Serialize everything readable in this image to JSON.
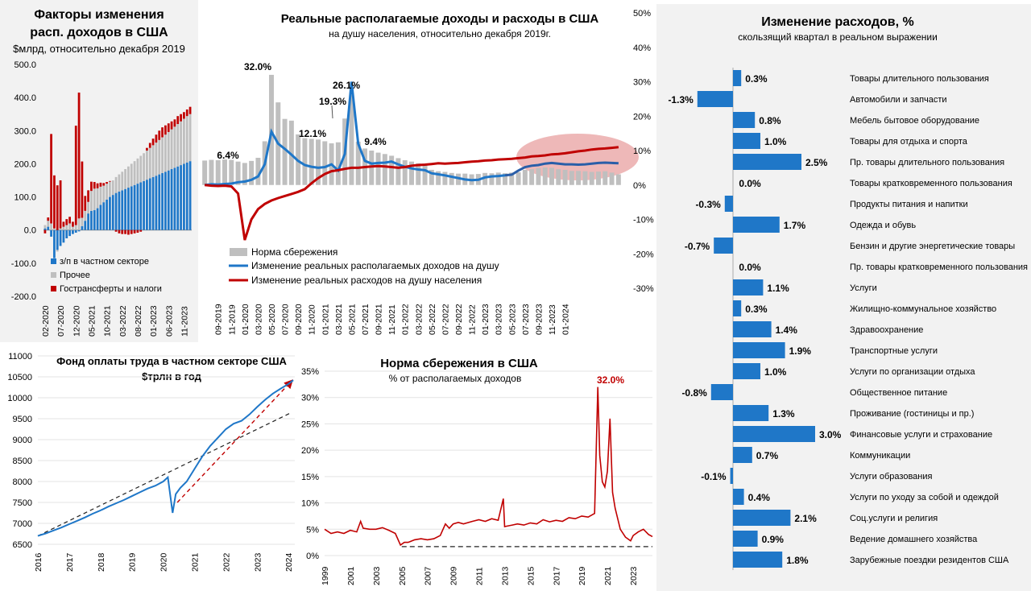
{
  "colors": {
    "blue": "#1f77c8",
    "red": "#c00000",
    "gray": "#bfbfbf",
    "dark_blue": "#2a5ea8",
    "highlight": "#e8a0a0"
  },
  "chart_data": [
    {
      "id": "factors",
      "type": "bar",
      "title_line1": "Факторы изменения",
      "title_line2": "расп. доходов в США",
      "subtitle": "$млрд, относительно декабря 2019",
      "y_ticks": [
        "500.0",
        "400.0",
        "300.0",
        "200.0",
        "100.0",
        "0.0",
        "-100.0",
        "-200.0"
      ],
      "ylim": [
        -200,
        500
      ],
      "x_labels": [
        "02-2020",
        "07-2020",
        "12-2020",
        "05-2021",
        "10-2021",
        "03-2022",
        "08-2022",
        "01-2023",
        "06-2023",
        "11-2023"
      ],
      "legend": [
        "з/п в частном секторе",
        "Прочее",
        "Гострансферты и налоги"
      ],
      "series": [
        {
          "name": "з/п в частном секторе",
          "values": [
            5,
            10,
            -20,
            -85,
            -60,
            -48,
            -38,
            -25,
            -18,
            -12,
            -8,
            -4,
            12,
            28,
            50,
            58,
            60,
            66,
            76,
            84,
            92,
            100,
            106,
            112,
            116,
            120,
            124,
            128,
            132,
            136,
            140,
            144,
            148,
            152,
            156,
            160,
            164,
            168,
            172,
            176,
            180,
            184,
            188,
            192,
            196,
            200,
            204,
            208
          ]
        },
        {
          "name": "Прочее",
          "values": [
            10,
            18,
            20,
            5,
            -5,
            5,
            10,
            15,
            20,
            10,
            15,
            35,
            25,
            30,
            35,
            60,
            65,
            60,
            55,
            50,
            48,
            46,
            44,
            48,
            52,
            56,
            60,
            64,
            68,
            72,
            76,
            80,
            84,
            88,
            92,
            96,
            100,
            104,
            108,
            112,
            116,
            120,
            124,
            128,
            132,
            136,
            140,
            142
          ]
        },
        {
          "name": "Гострансферты и налоги",
          "values": [
            -10,
            10,
            270,
            160,
            135,
            145,
            15,
            18,
            20,
            15,
            300,
            380,
            170,
            45,
            35,
            28,
            20,
            15,
            12,
            8,
            5,
            2,
            0,
            -5,
            -10,
            -12,
            -12,
            -14,
            -12,
            -10,
            -8,
            -5,
            0,
            8,
            15,
            20,
            24,
            28,
            30,
            28,
            26,
            24,
            22,
            24,
            22,
            20,
            20,
            22
          ]
        }
      ]
    },
    {
      "id": "incomes",
      "type": "line",
      "title": "Реальные располагаемые доходы и расходы в США",
      "subtitle": "на душу населения, относительно декабря 2019г.",
      "y_ticks": [
        "50%",
        "40%",
        "30%",
        "20%",
        "10%",
        "0%",
        "-10%",
        "-20%",
        "-30%"
      ],
      "ylim": [
        -30,
        50
      ],
      "x_labels": [
        "09-2019",
        "11-2019",
        "01-2020",
        "03-2020",
        "05-2020",
        "07-2020",
        "09-2020",
        "11-2020",
        "01-2021",
        "03-2021",
        "05-2021",
        "07-2021",
        "09-2021",
        "11-2021",
        "01-2022",
        "03-2022",
        "05-2022",
        "07-2022",
        "09-2022",
        "11-2022",
        "01-2023",
        "03-2023",
        "05-2023",
        "07-2023",
        "09-2023",
        "11-2023",
        "01-2024"
      ],
      "annotations": [
        "32.0%",
        "26.1%",
        "19.3%",
        "12.1%",
        "9.4%",
        "6.4%"
      ],
      "legend": [
        "Норма сбережения",
        "Изменение  реальных располагаемых доходов на душу",
        "Изменение реальных расходов на душу населения"
      ],
      "saving_rate": [
        7.1,
        7.3,
        7.2,
        7.4,
        7.3,
        6.8,
        6.4,
        7.0,
        7.9,
        12.7,
        32.0,
        24.0,
        19.2,
        18.7,
        14.7,
        13.6,
        13.4,
        13.2,
        12.7,
        12.1,
        12.4,
        19.3,
        26.1,
        12.6,
        10.6,
        10.0,
        9.4,
        9.0,
        8.5,
        7.8,
        7.2,
        6.8,
        6.3,
        5.8,
        4.4,
        4.0,
        3.8,
        3.5,
        3.3,
        3.3,
        3.1,
        3.2,
        3.5,
        3.4,
        3.6,
        3.4,
        3.6,
        3.7,
        4.4,
        4.6,
        4.9,
        5.1,
        5.0,
        4.6,
        4.4,
        4.1,
        4.1,
        4.0,
        3.8,
        3.9,
        4.0,
        3.6,
        3.1
      ],
      "income": [
        0.0,
        0.2,
        0.1,
        0.3,
        0.4,
        0.8,
        1.0,
        1.5,
        2.5,
        6.0,
        15.5,
        12.0,
        10.5,
        8.8,
        7.0,
        5.8,
        5.3,
        5.0,
        5.2,
        6.0,
        4.2,
        9.0,
        30.0,
        12.0,
        7.0,
        6.2,
        6.4,
        6.5,
        6.8,
        6.0,
        5.3,
        4.8,
        4.5,
        4.3,
        3.4,
        3.1,
        2.8,
        2.4,
        2.0,
        1.6,
        1.4,
        1.5,
        2.2,
        2.5,
        2.6,
        2.8,
        3.0,
        4.2,
        5.2,
        5.6,
        5.8,
        6.2,
        6.4,
        6.2,
        6.0,
        6.0,
        5.9,
        6.0,
        6.2,
        6.4,
        6.5,
        6.4,
        6.3
      ],
      "spending": [
        0.0,
        -0.2,
        -0.3,
        -0.2,
        -0.4,
        -2.5,
        -16.0,
        -10.0,
        -7.0,
        -5.5,
        -4.5,
        -3.8,
        -3.2,
        -2.6,
        -2.0,
        -1.2,
        0.5,
        2.0,
        3.2,
        4.0,
        4.3,
        4.7,
        5.0,
        5.0,
        5.2,
        5.4,
        5.5,
        5.4,
        5.2,
        5.0,
        5.2,
        5.6,
        5.8,
        5.9,
        6.1,
        6.3,
        6.2,
        6.3,
        6.4,
        6.6,
        6.8,
        6.9,
        7.1,
        7.2,
        7.4,
        7.5,
        7.6,
        7.8,
        8.0,
        8.3,
        8.4,
        8.6,
        8.9,
        9.0,
        9.2,
        9.5,
        9.8,
        10.0,
        10.3,
        10.5,
        10.6,
        10.8,
        11.0
      ]
    },
    {
      "id": "spending_change",
      "type": "bar",
      "title": "Изменение расходов, %",
      "subtitle": "скользящий квартал в реальном выражении",
      "categories": [
        "Товары длительного пользования",
        "Автомобили и запчасти",
        "Мебель бытовое оборудование",
        "Товары для отдыха и спорта",
        "Пр. товары длительного пользования",
        "Товары кратковременного пользования",
        "Продукты питания и напитки",
        "Одежда и обувь",
        "Бензин и другие энергетические товары",
        "Пр. товары кратковременного пользования",
        "Услуги",
        "Жилищно-коммунальное хозяйство",
        "Здравоохранение",
        "Транспортные услуги",
        "Услуги по организации отдыха",
        "Общественное питание",
        "Проживание (гостиницы и пр.)",
        "Финансовые услуги и страхование",
        "Коммуникации",
        "Услуги образования",
        "Услуги по уходу за собой и одеждой",
        "Соц.услуги и религия",
        "Ведение домашнего хозяйства",
        "Зарубежные поездки резидентов США"
      ],
      "values": [
        0.3,
        -1.3,
        0.8,
        1.0,
        2.5,
        0.0,
        -0.3,
        1.7,
        -0.7,
        0.0,
        1.1,
        0.3,
        1.4,
        1.9,
        1.0,
        -0.8,
        1.3,
        3.0,
        0.7,
        -0.1,
        0.4,
        2.1,
        0.9,
        1.8
      ],
      "labels": [
        "0.3%",
        "-1.3%",
        "0.8%",
        "1.0%",
        "2.5%",
        "0.0%",
        "-0.3%",
        "1.7%",
        "-0.7%",
        "0.0%",
        "1.1%",
        "0.3%",
        "1.4%",
        "1.9%",
        "1.0%",
        "-0.8%",
        "1.3%",
        "3.0%",
        "0.7%",
        "-0.1%",
        "0.4%",
        "2.1%",
        "0.9%",
        "1.8%"
      ]
    },
    {
      "id": "payroll",
      "type": "line",
      "title_line1": "Фонд оплаты труда в частном секторе США",
      "title_line2": "$трлн в год",
      "y_ticks": [
        "11000",
        "10500",
        "10000",
        "9500",
        "9000",
        "8500",
        "8000",
        "7500",
        "7000",
        "6500"
      ],
      "ylim": [
        6500,
        11000
      ],
      "x_labels": [
        "2016",
        "2017",
        "2018",
        "2019",
        "2020",
        "2021",
        "2022",
        "2023",
        "2024"
      ],
      "xlim": [
        2016,
        2024.2
      ],
      "series": [
        {
          "name": "payroll",
          "x": [
            2016.0,
            2016.25,
            2016.5,
            2016.75,
            2017.0,
            2017.25,
            2017.5,
            2017.75,
            2018.0,
            2018.25,
            2018.5,
            2018.75,
            2019.0,
            2019.25,
            2019.5,
            2019.75,
            2020.0,
            2020.15,
            2020.3,
            2020.4,
            2020.55,
            2020.75,
            2021.0,
            2021.25,
            2021.5,
            2021.75,
            2022.0,
            2022.25,
            2022.5,
            2022.75,
            2023.0,
            2023.25,
            2023.5,
            2023.75,
            2024.0,
            2024.15
          ],
          "y": [
            6700,
            6760,
            6830,
            6900,
            6980,
            7060,
            7140,
            7230,
            7310,
            7400,
            7480,
            7560,
            7650,
            7740,
            7830,
            7900,
            8000,
            8100,
            7250,
            7700,
            7850,
            8000,
            8300,
            8600,
            8850,
            9050,
            9250,
            9380,
            9450,
            9600,
            9780,
            9950,
            10100,
            10220,
            10330,
            10420
          ]
        }
      ],
      "trend_x": [
        2016,
        2024.1
      ],
      "trend_y": [
        6700,
        9650
      ],
      "arrow_x": [
        2020.45,
        2024.1
      ],
      "arrow_y": [
        7500,
        10400
      ]
    },
    {
      "id": "saving",
      "type": "line",
      "title": "Норма сбережения в США",
      "subtitle": "%  от располагаемых доходов",
      "peak_label": "32.0%",
      "y_ticks": [
        "35%",
        "30%",
        "25%",
        "20%",
        "15%",
        "10%",
        "5%",
        "0%"
      ],
      "ylim": [
        0,
        35
      ],
      "x_labels": [
        "1999",
        "2001",
        "2003",
        "2005",
        "2007",
        "2009",
        "2011",
        "2013",
        "2015",
        "2017",
        "2019",
        "2021",
        "2023"
      ],
      "xlim": [
        1999,
        2024.5
      ],
      "series": [
        {
          "name": "saving",
          "x": [
            1999.0,
            1999.5,
            2000.0,
            2000.5,
            2001.0,
            2001.5,
            2001.8,
            2002.0,
            2002.5,
            2003.0,
            2003.5,
            2004.0,
            2004.5,
            2004.9,
            2005.2,
            2005.5,
            2006.0,
            2006.5,
            2007.0,
            2007.5,
            2008.0,
            2008.4,
            2008.7,
            2009.0,
            2009.4,
            2009.8,
            2010.5,
            2011.0,
            2011.5,
            2012.0,
            2012.5,
            2012.9,
            2013.0,
            2013.2,
            2013.6,
            2014.0,
            2014.5,
            2015.0,
            2015.5,
            2016.0,
            2016.5,
            2017.0,
            2017.5,
            2018.0,
            2018.5,
            2019.0,
            2019.5,
            2020.0,
            2020.25,
            2020.4,
            2020.6,
            2020.8,
            2021.0,
            2021.2,
            2021.4,
            2021.6,
            2022.0,
            2022.4,
            2022.8,
            2023.0,
            2023.4,
            2023.8,
            2024.2,
            2024.5
          ],
          "y": [
            5.0,
            4.2,
            4.5,
            4.2,
            4.8,
            4.5,
            6.5,
            5.2,
            5.0,
            5.0,
            5.3,
            4.8,
            4.2,
            2.0,
            2.5,
            2.5,
            3.0,
            3.2,
            3.0,
            3.2,
            3.8,
            6.0,
            5.2,
            6.0,
            6.3,
            6.0,
            6.5,
            6.8,
            6.5,
            7.0,
            6.7,
            10.8,
            5.5,
            5.6,
            5.8,
            6.0,
            5.8,
            6.2,
            6.0,
            6.8,
            6.4,
            6.7,
            6.5,
            7.2,
            7.0,
            7.5,
            7.3,
            8.0,
            32.0,
            19.0,
            14.0,
            13.0,
            16.0,
            26.0,
            12.0,
            9.0,
            5.0,
            3.5,
            2.8,
            3.8,
            4.5,
            5.0,
            4.0,
            3.6
          ]
        }
      ],
      "baseline_y": 1.7
    }
  ]
}
